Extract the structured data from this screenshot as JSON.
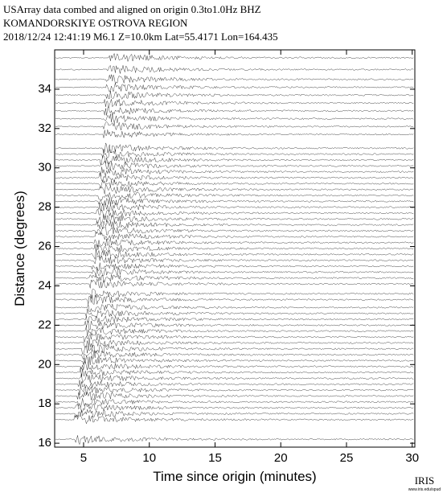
{
  "chart_data": {
    "type": "record-section",
    "title": "USArray data combed and aligned on origin   0.3to1.0Hz  BHZ",
    "subtitle": "KOMANDORSKIYE OSTROVA REGION",
    "event": "2018/12/24  12:41:19  M6.1  Z=10.0km Lat=55.4171 Lon=164.435",
    "x_label": "Time since origin (minutes)",
    "y_label": "Distance (degrees)",
    "logo": "IRIS",
    "logo_url": "www.iris.edu/spud",
    "xlim": [
      2.8,
      30.2
    ],
    "xticks": [
      5,
      10,
      15,
      20,
      25,
      30
    ],
    "ylim": [
      15.8,
      36
    ],
    "yticks": [
      16,
      18,
      20,
      22,
      24,
      26,
      28,
      30,
      32,
      34
    ],
    "color": "#000000",
    "traces": [
      {
        "distance": 16.2,
        "onset": 4.4
      },
      {
        "distance": 17.2,
        "onset": 4.3
      },
      {
        "distance": 17.5,
        "onset": 4.4
      },
      {
        "distance": 17.8,
        "onset": 4.4
      },
      {
        "distance": 18.1,
        "onset": 4.5
      },
      {
        "distance": 18.4,
        "onset": 4.5
      },
      {
        "distance": 18.7,
        "onset": 4.6
      },
      {
        "distance": 19.0,
        "onset": 4.6
      },
      {
        "distance": 19.3,
        "onset": 4.7
      },
      {
        "distance": 19.6,
        "onset": 4.7
      },
      {
        "distance": 19.9,
        "onset": 4.8
      },
      {
        "distance": 20.2,
        "onset": 4.8
      },
      {
        "distance": 20.5,
        "onset": 4.9
      },
      {
        "distance": 20.8,
        "onset": 4.9
      },
      {
        "distance": 21.1,
        "onset": 5.0
      },
      {
        "distance": 21.4,
        "onset": 5.0
      },
      {
        "distance": 21.7,
        "onset": 5.1
      },
      {
        "distance": 22.0,
        "onset": 5.1
      },
      {
        "distance": 22.3,
        "onset": 5.2
      },
      {
        "distance": 22.6,
        "onset": 5.2
      },
      {
        "distance": 22.9,
        "onset": 5.3
      },
      {
        "distance": 23.3,
        "onset": 5.3
      },
      {
        "distance": 23.6,
        "onset": 5.4
      },
      {
        "distance": 24.1,
        "onset": 5.5
      },
      {
        "distance": 24.4,
        "onset": 5.5
      },
      {
        "distance": 24.7,
        "onset": 5.6
      },
      {
        "distance": 25.0,
        "onset": 5.6
      },
      {
        "distance": 25.3,
        "onset": 5.7
      },
      {
        "distance": 25.6,
        "onset": 5.7
      },
      {
        "distance": 25.9,
        "onset": 5.8
      },
      {
        "distance": 26.2,
        "onset": 5.8
      },
      {
        "distance": 26.5,
        "onset": 5.9
      },
      {
        "distance": 26.8,
        "onset": 5.9
      },
      {
        "distance": 27.1,
        "onset": 6.0
      },
      {
        "distance": 27.4,
        "onset": 6.0
      },
      {
        "distance": 27.7,
        "onset": 6.0
      },
      {
        "distance": 28.0,
        "onset": 6.1
      },
      {
        "distance": 28.3,
        "onset": 6.1
      },
      {
        "distance": 28.6,
        "onset": 6.1
      },
      {
        "distance": 28.9,
        "onset": 6.2
      },
      {
        "distance": 29.2,
        "onset": 6.2
      },
      {
        "distance": 29.5,
        "onset": 6.2
      },
      {
        "distance": 29.8,
        "onset": 6.3
      },
      {
        "distance": 30.1,
        "onset": 6.3
      },
      {
        "distance": 30.4,
        "onset": 6.3
      },
      {
        "distance": 30.7,
        "onset": 6.4
      },
      {
        "distance": 31.0,
        "onset": 6.4
      },
      {
        "distance": 31.7,
        "onset": 6.5
      },
      {
        "distance": 32.1,
        "onset": 6.5
      },
      {
        "distance": 32.5,
        "onset": 6.6
      },
      {
        "distance": 32.9,
        "onset": 6.6
      },
      {
        "distance": 33.3,
        "onset": 6.6
      },
      {
        "distance": 33.7,
        "onset": 6.7
      },
      {
        "distance": 34.1,
        "onset": 6.7
      },
      {
        "distance": 34.5,
        "onset": 6.7
      },
      {
        "distance": 35.0,
        "onset": 6.8
      },
      {
        "distance": 35.6,
        "onset": 6.9
      }
    ]
  }
}
